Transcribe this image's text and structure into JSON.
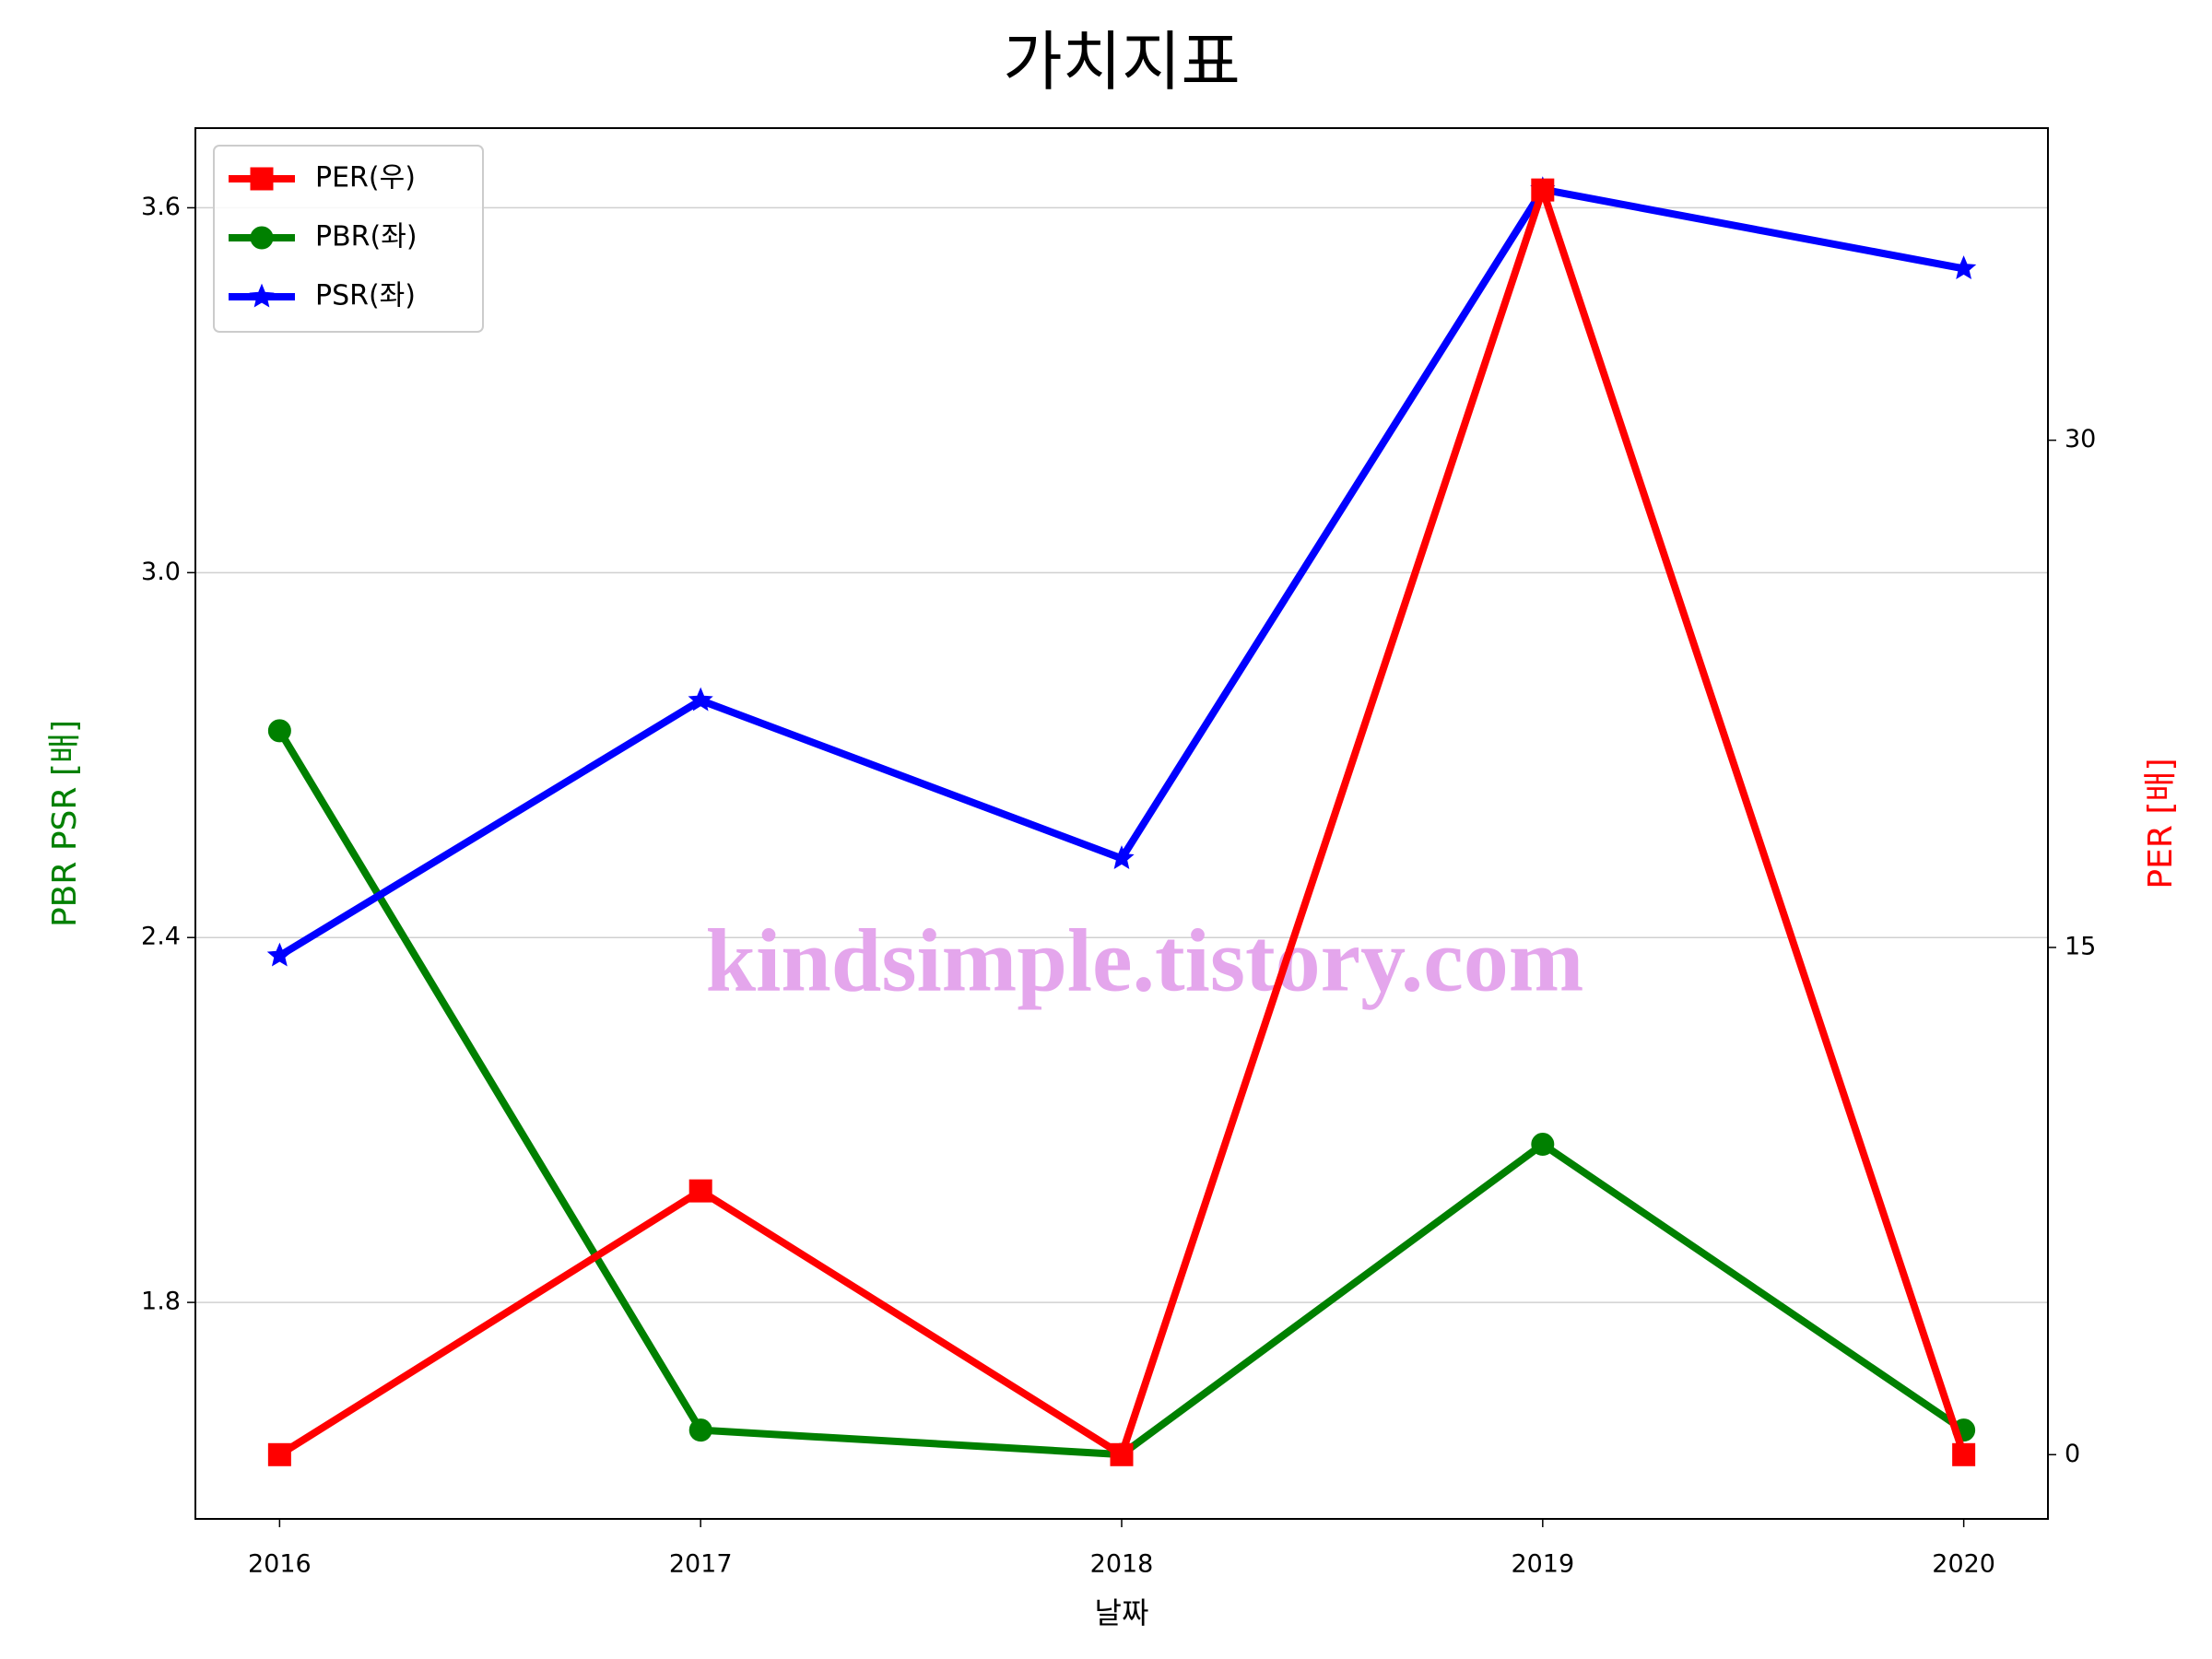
{
  "chart_data": {
    "type": "line",
    "title": "가치지표",
    "xlabel": "날짜",
    "ylabel": "PBR PSR [배]",
    "ylabel_color": "green",
    "y2label": "PER [배]",
    "y2label_color": "red",
    "x": [
      2016,
      2017,
      2018,
      2019,
      2020
    ],
    "xlim": [
      2015.8,
      2020.2
    ],
    "xticks": [
      2016,
      2017,
      2018,
      2019,
      2020
    ],
    "ylim": [
      1.444,
      3.731
    ],
    "yticks": [
      {
        "value": 1.8,
        "label": "1.8"
      },
      {
        "value": 2.4,
        "label": "2.4"
      },
      {
        "value": 3.0,
        "label": "3.0"
      },
      {
        "value": 3.6,
        "label": "3.6"
      }
    ],
    "y2lim": [
      -1.9,
      39.23
    ],
    "y2ticks": [
      0,
      15,
      30
    ],
    "grid": true,
    "legend": "upper left",
    "series": [
      {
        "name": "PER(우)",
        "color": "red",
        "marker": "square",
        "axis": "y2",
        "values": [
          0,
          7.8,
          0,
          37.4,
          0
        ]
      },
      {
        "name": "PBR(좌)",
        "color": "green",
        "marker": "circle",
        "values": [
          2.74,
          1.59,
          1.55,
          2.06,
          1.59
        ]
      },
      {
        "name": "PSR(좌)",
        "color": "blue",
        "marker": "star",
        "values": [
          2.37,
          2.79,
          2.53,
          3.63,
          3.5
        ]
      }
    ],
    "annotation": {
      "text": "kindsimple.tistory.com",
      "color": "#e4a6ec"
    }
  }
}
